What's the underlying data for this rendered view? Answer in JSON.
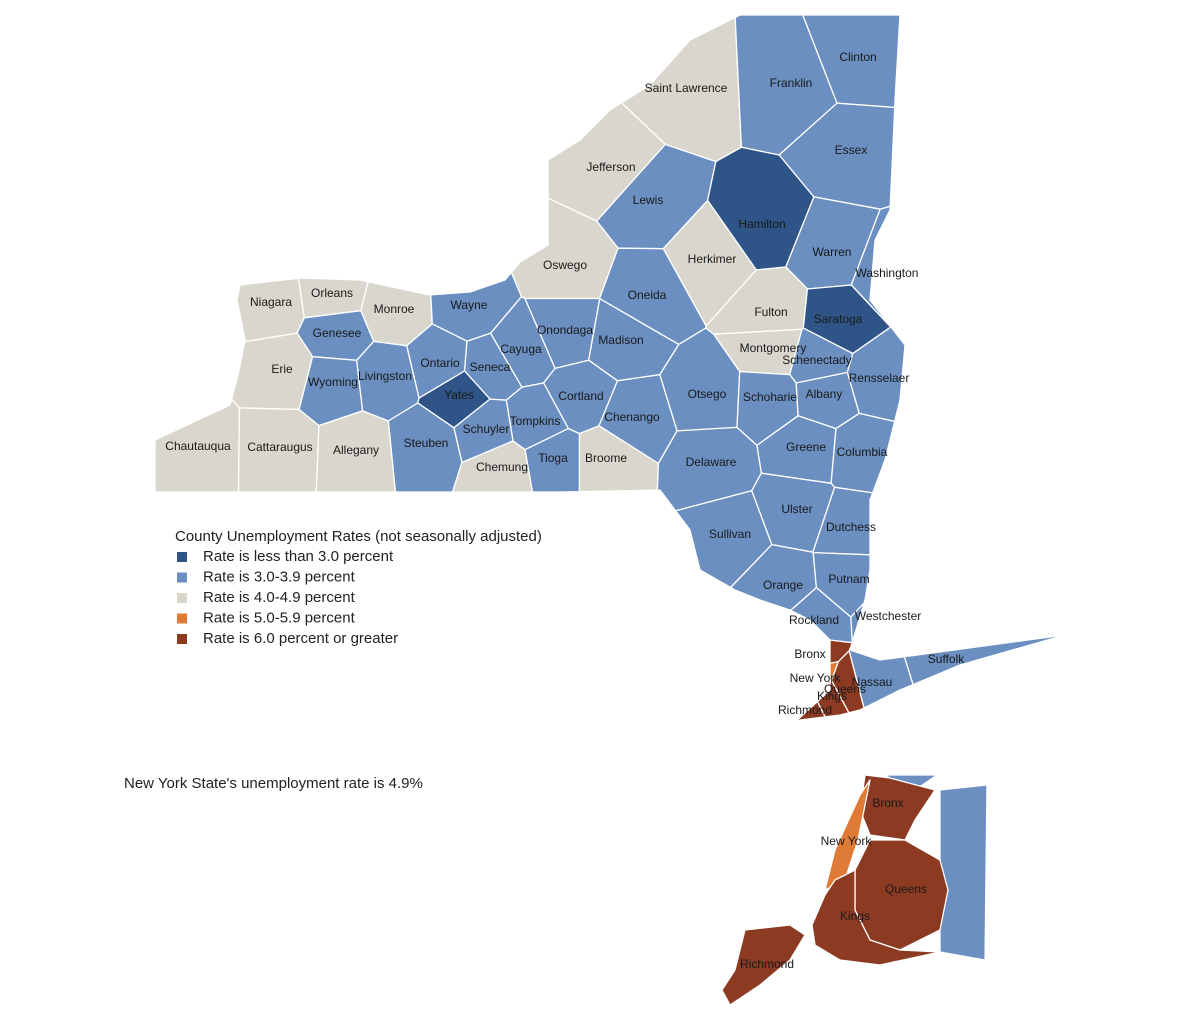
{
  "legend": {
    "title": "County Unemployment Rates (not seasonally adjusted)",
    "items": [
      {
        "label": "Rate is less than 3.0 percent",
        "color": "#2f5487"
      },
      {
        "label": "Rate is 3.0-3.9 percent",
        "color": "#6a8fc0"
      },
      {
        "label": "Rate is 4.0-4.9 percent",
        "color": "#d9d7cd"
      },
      {
        "label": "Rate is 5.0-5.9 percent",
        "color": "#df7a37"
      },
      {
        "label": "Rate is 6.0 percent or greater",
        "color": "#8c3b22"
      }
    ]
  },
  "note": "New York State's unemployment rate is 4.9%",
  "counties": [
    {
      "name": "Saint Lawrence",
      "group": 2
    },
    {
      "name": "Franklin",
      "group": 1
    },
    {
      "name": "Clinton",
      "group": 1
    },
    {
      "name": "Essex",
      "group": 1
    },
    {
      "name": "Jefferson",
      "group": 2
    },
    {
      "name": "Lewis",
      "group": 1
    },
    {
      "name": "Hamilton",
      "group": 0
    },
    {
      "name": "Herkimer",
      "group": 2
    },
    {
      "name": "Warren",
      "group": 1
    },
    {
      "name": "Washington",
      "group": 1
    },
    {
      "name": "Oswego",
      "group": 2
    },
    {
      "name": "Oneida",
      "group": 1
    },
    {
      "name": "Fulton",
      "group": 2
    },
    {
      "name": "Saratoga",
      "group": 0
    },
    {
      "name": "Niagara",
      "group": 2
    },
    {
      "name": "Orleans",
      "group": 2
    },
    {
      "name": "Monroe",
      "group": 2
    },
    {
      "name": "Wayne",
      "group": 1
    },
    {
      "name": "Genesee",
      "group": 1
    },
    {
      "name": "Onondaga",
      "group": 1
    },
    {
      "name": "Madison",
      "group": 1
    },
    {
      "name": "Cayuga",
      "group": 1
    },
    {
      "name": "Ontario",
      "group": 1
    },
    {
      "name": "Seneca",
      "group": 1
    },
    {
      "name": "Montgomery",
      "group": 2
    },
    {
      "name": "Schenectady",
      "group": 1
    },
    {
      "name": "Rensselaer",
      "group": 1
    },
    {
      "name": "Erie",
      "group": 2
    },
    {
      "name": "Wyoming",
      "group": 1
    },
    {
      "name": "Livingston",
      "group": 1
    },
    {
      "name": "Yates",
      "group": 0
    },
    {
      "name": "Cortland",
      "group": 1
    },
    {
      "name": "Otsego",
      "group": 1
    },
    {
      "name": "Schoharie",
      "group": 1
    },
    {
      "name": "Albany",
      "group": 1
    },
    {
      "name": "Chenango",
      "group": 1
    },
    {
      "name": "Tompkins",
      "group": 1
    },
    {
      "name": "Schuyler",
      "group": 1
    },
    {
      "name": "Steuben",
      "group": 1
    },
    {
      "name": "Chautauqua",
      "group": 2
    },
    {
      "name": "Cattaraugus",
      "group": 2
    },
    {
      "name": "Allegany",
      "group": 2
    },
    {
      "name": "Greene",
      "group": 1
    },
    {
      "name": "Columbia",
      "group": 1
    },
    {
      "name": "Chemung",
      "group": 2
    },
    {
      "name": "Tioga",
      "group": 1
    },
    {
      "name": "Broome",
      "group": 2
    },
    {
      "name": "Delaware",
      "group": 1
    },
    {
      "name": "Ulster",
      "group": 1
    },
    {
      "name": "Dutchess",
      "group": 1
    },
    {
      "name": "Sullivan",
      "group": 1
    },
    {
      "name": "Orange",
      "group": 1
    },
    {
      "name": "Putnam",
      "group": 1
    },
    {
      "name": "Rockland",
      "group": 1
    },
    {
      "name": "Westchester",
      "group": 1
    },
    {
      "name": "Bronx",
      "group": 4
    },
    {
      "name": "New York",
      "group": 3
    },
    {
      "name": "Queens",
      "group": 4
    },
    {
      "name": "Kings",
      "group": 4
    },
    {
      "name": "Nassau",
      "group": 1
    },
    {
      "name": "Suffolk",
      "group": 1
    },
    {
      "name": "Richmond",
      "group": 4
    }
  ]
}
